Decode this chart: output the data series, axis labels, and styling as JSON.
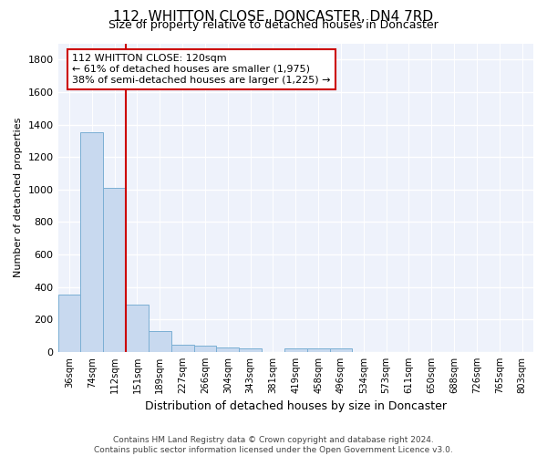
{
  "title1": "112, WHITTON CLOSE, DONCASTER, DN4 7RD",
  "title2": "Size of property relative to detached houses in Doncaster",
  "xlabel": "Distribution of detached houses by size in Doncaster",
  "ylabel": "Number of detached properties",
  "categories": [
    "36sqm",
    "74sqm",
    "112sqm",
    "151sqm",
    "189sqm",
    "227sqm",
    "266sqm",
    "304sqm",
    "343sqm",
    "381sqm",
    "419sqm",
    "458sqm",
    "496sqm",
    "534sqm",
    "573sqm",
    "611sqm",
    "650sqm",
    "688sqm",
    "726sqm",
    "765sqm",
    "803sqm"
  ],
  "values": [
    355,
    1350,
    1010,
    290,
    130,
    45,
    38,
    27,
    22,
    0,
    20,
    20,
    20,
    0,
    0,
    0,
    0,
    0,
    0,
    0,
    0
  ],
  "bar_color": "#c8d9ef",
  "bar_edge_color": "#7bafd4",
  "ylim": [
    0,
    1900
  ],
  "yticks": [
    0,
    200,
    400,
    600,
    800,
    1000,
    1200,
    1400,
    1600,
    1800
  ],
  "vline_x_bar": 2,
  "vline_color": "#cc0000",
  "annotation_text": "112 WHITTON CLOSE: 120sqm\n← 61% of detached houses are smaller (1,975)\n38% of semi-detached houses are larger (1,225) →",
  "annotation_box_color": "#cc0000",
  "annotation_bg": "#ffffff",
  "footnote": "Contains HM Land Registry data © Crown copyright and database right 2024.\nContains public sector information licensed under the Open Government Licence v3.0.",
  "bg_color": "#eef2fb",
  "grid_color": "#ffffff",
  "title1_fontsize": 11,
  "title2_fontsize": 9,
  "ylabel_fontsize": 8,
  "xlabel_fontsize": 9
}
